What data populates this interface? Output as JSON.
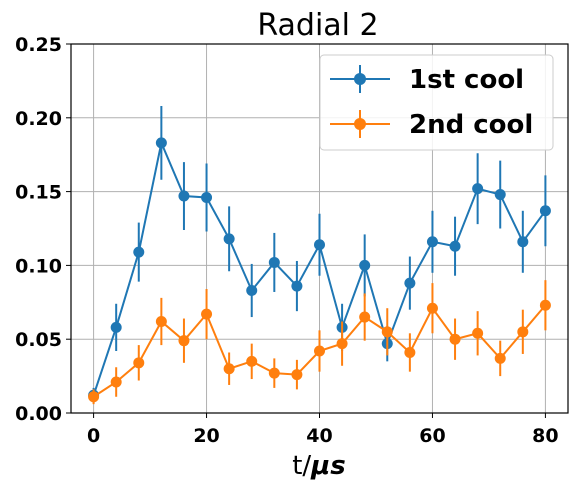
{
  "chart_data": {
    "type": "line",
    "title": "Radial 2",
    "xlabel_prefix": "t/",
    "xlabel_unit": "μs",
    "ylabel": "",
    "xlim": [
      -4,
      84
    ],
    "ylim": [
      0.0,
      0.25
    ],
    "x_ticks": [
      0,
      20,
      40,
      60,
      80
    ],
    "x_tick_labels": [
      "0",
      "20",
      "40",
      "60",
      "80"
    ],
    "y_ticks": [
      0.0,
      0.05,
      0.1,
      0.15,
      0.2,
      0.25
    ],
    "y_tick_labels": [
      "0.00",
      "0.05",
      "0.10",
      "0.15",
      "0.20",
      "0.25"
    ],
    "grid": true,
    "legend_position": "top-right",
    "x": [
      0,
      4,
      8,
      12,
      16,
      20,
      24,
      28,
      32,
      36,
      40,
      44,
      48,
      52,
      56,
      60,
      64,
      68,
      72,
      76,
      80
    ],
    "series": [
      {
        "name": "1st cool",
        "color": "#1f77b4",
        "values": [
          0.012,
          0.058,
          0.109,
          0.183,
          0.147,
          0.146,
          0.118,
          0.083,
          0.102,
          0.086,
          0.114,
          0.058,
          0.1,
          0.047,
          0.088,
          0.116,
          0.113,
          0.152,
          0.148,
          0.116,
          0.137
        ],
        "errors": [
          0.005,
          0.016,
          0.02,
          0.025,
          0.023,
          0.023,
          0.022,
          0.018,
          0.02,
          0.017,
          0.021,
          0.016,
          0.021,
          0.012,
          0.018,
          0.021,
          0.02,
          0.024,
          0.023,
          0.021,
          0.024
        ]
      },
      {
        "name": "2nd cool",
        "color": "#ff7f0e",
        "values": [
          0.011,
          0.021,
          0.034,
          0.062,
          0.049,
          0.067,
          0.03,
          0.035,
          0.027,
          0.026,
          0.042,
          0.047,
          0.065,
          0.055,
          0.041,
          0.071,
          0.05,
          0.054,
          0.037,
          0.055,
          0.073
        ],
        "errors": [
          0.005,
          0.01,
          0.012,
          0.016,
          0.015,
          0.017,
          0.011,
          0.012,
          0.01,
          0.01,
          0.014,
          0.015,
          0.016,
          0.016,
          0.013,
          0.017,
          0.014,
          0.015,
          0.012,
          0.015,
          0.017
        ]
      }
    ]
  }
}
